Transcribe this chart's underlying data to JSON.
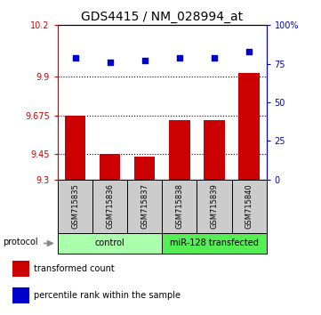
{
  "title": "GDS4415 / NM_028994_at",
  "samples": [
    "GSM715835",
    "GSM715836",
    "GSM715837",
    "GSM715838",
    "GSM715839",
    "GSM715840"
  ],
  "transformed_count": [
    9.675,
    9.45,
    9.435,
    9.645,
    9.645,
    9.92
  ],
  "percentile_rank": [
    79,
    76,
    77,
    79,
    79,
    83
  ],
  "ylim_left": [
    9.3,
    10.2
  ],
  "ylim_right": [
    0,
    100
  ],
  "yticks_left": [
    9.3,
    9.45,
    9.675,
    9.9,
    10.2
  ],
  "yticks_right": [
    0,
    25,
    50,
    75,
    100
  ],
  "ytick_labels_left": [
    "9.3",
    "9.45",
    "9.675",
    "9.9",
    "10.2"
  ],
  "ytick_labels_right": [
    "0",
    "25",
    "50",
    "75",
    "100%"
  ],
  "hlines": [
    9.9,
    9.675,
    9.45
  ],
  "bar_color": "#cc0000",
  "dot_color": "#0000cc",
  "bar_width": 0.6,
  "groups": [
    {
      "label": "control",
      "indices": [
        0,
        1,
        2
      ],
      "color": "#aaffaa"
    },
    {
      "label": "miR-128 transfected",
      "indices": [
        3,
        4,
        5
      ],
      "color": "#55ee55"
    }
  ],
  "protocol_label": "protocol",
  "legend_items": [
    {
      "color": "#cc0000",
      "label": "transformed count"
    },
    {
      "color": "#0000cc",
      "label": "percentile rank within the sample"
    }
  ],
  "sample_bg_color": "#cccccc",
  "title_fontsize": 10,
  "tick_fontsize": 7,
  "label_fontsize": 6,
  "group_fontsize": 7,
  "legend_fontsize": 7,
  "axis_color_left": "#cc0000",
  "axis_color_right": "#0000cc"
}
